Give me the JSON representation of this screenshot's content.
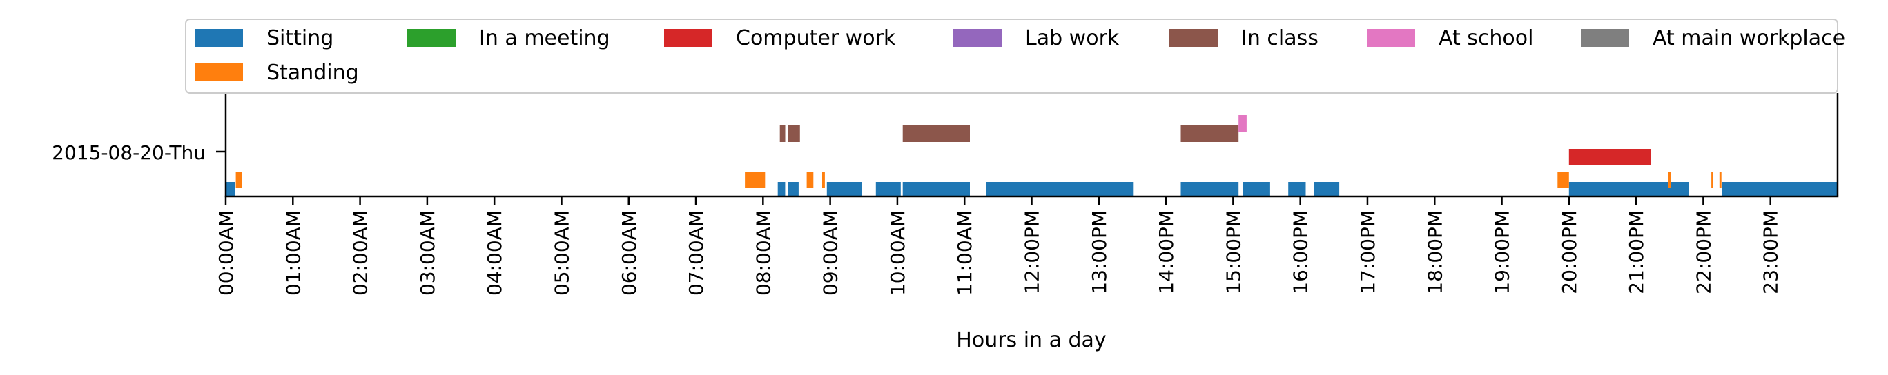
{
  "chart_data": {
    "type": "timeline",
    "title": "",
    "xlabel": "Hours in a day",
    "ylabel": "",
    "xlim_hours": [
      0,
      24
    ],
    "y_categories": [
      "2015-08-20-Thu"
    ],
    "x_tick_labels": [
      "00:00AM",
      "01:00AM",
      "02:00AM",
      "03:00AM",
      "04:00AM",
      "05:00AM",
      "06:00AM",
      "07:00AM",
      "08:00AM",
      "09:00AM",
      "10:00AM",
      "11:00AM",
      "12:00PM",
      "13:00PM",
      "14:00PM",
      "15:00PM",
      "16:00PM",
      "17:00PM",
      "18:00PM",
      "19:00PM",
      "20:00PM",
      "21:00PM",
      "22:00PM",
      "23:00PM"
    ],
    "legend": {
      "placement": "top",
      "entries": [
        {
          "label": "Sitting",
          "color": "#1f77b4"
        },
        {
          "label": "In a meeting",
          "color": "#2ca02c"
        },
        {
          "label": "Computer work",
          "color": "#d62728"
        },
        {
          "label": "Lab work",
          "color": "#9467bd"
        },
        {
          "label": "In class",
          "color": "#8c564b"
        },
        {
          "label": "At school",
          "color": "#e377c2"
        },
        {
          "label": "At main workplace",
          "color": "#7f7f7f"
        },
        {
          "label": "Standing",
          "color": "#ff7f0e"
        }
      ]
    },
    "series": [
      {
        "name": "Sitting",
        "color": "#1f77b4",
        "intervals": [
          [
            0.0,
            0.14
          ],
          [
            8.22,
            8.33
          ],
          [
            8.37,
            8.53
          ],
          [
            8.95,
            9.47
          ],
          [
            9.68,
            10.05
          ],
          [
            10.08,
            11.08
          ],
          [
            11.32,
            13.52
          ],
          [
            14.22,
            15.08
          ],
          [
            15.15,
            15.55
          ],
          [
            15.82,
            16.08
          ],
          [
            16.2,
            16.58
          ],
          [
            20.0,
            21.78
          ],
          [
            22.28,
            24.0
          ]
        ]
      },
      {
        "name": "Standing",
        "color": "#ff7f0e",
        "intervals": [
          [
            0.15,
            0.24
          ],
          [
            7.73,
            8.03
          ],
          [
            8.65,
            8.75
          ],
          [
            8.88,
            8.92
          ],
          [
            19.83,
            20.0
          ],
          [
            21.48,
            21.52
          ],
          [
            22.12,
            22.15
          ],
          [
            22.24,
            22.27
          ]
        ]
      },
      {
        "name": "Computer work",
        "color": "#d62728",
        "intervals": [
          [
            20.0,
            21.22
          ]
        ]
      },
      {
        "name": "In class",
        "color": "#8c564b",
        "intervals": [
          [
            8.25,
            8.33
          ],
          [
            8.37,
            8.55
          ],
          [
            10.08,
            11.08
          ],
          [
            14.22,
            15.08
          ]
        ]
      },
      {
        "name": "At school",
        "color": "#e377c2",
        "intervals": [
          [
            15.08,
            15.2
          ]
        ]
      }
    ]
  }
}
